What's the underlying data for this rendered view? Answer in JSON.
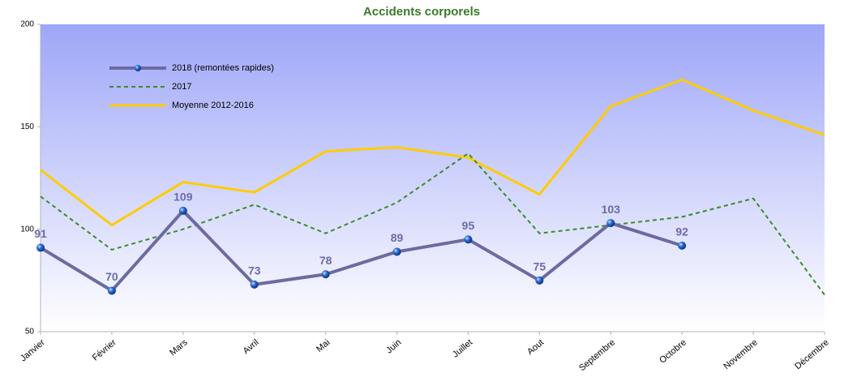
{
  "chart_data": {
    "type": "line",
    "title": "Accidents corporels",
    "categories": [
      "Janvier",
      "Février",
      "Mars",
      "Avril",
      "Mai",
      "Juin",
      "Juillet",
      "Aout",
      "Septembre",
      "Octobre",
      "Novembre",
      "Décembre"
    ],
    "series": [
      {
        "name": "2018 (remontées rapides)",
        "color": "#6b6b9f",
        "values": [
          91,
          70,
          109,
          73,
          78,
          89,
          95,
          75,
          103,
          92,
          null,
          null
        ]
      },
      {
        "name": "2017",
        "color": "#3c8c28",
        "values": [
          116,
          90,
          100,
          112,
          98,
          113,
          137,
          98,
          102,
          106,
          115,
          68
        ]
      },
      {
        "name": "Moyenne 2012-2016",
        "color": "#ffcc00",
        "values": [
          129,
          102,
          123,
          118,
          138,
          140,
          135,
          117,
          160,
          173,
          158,
          146
        ]
      }
    ],
    "ylim": [
      50,
      200
    ],
    "yticks": [
      50,
      100,
      150,
      200
    ],
    "legend": "upper left"
  }
}
